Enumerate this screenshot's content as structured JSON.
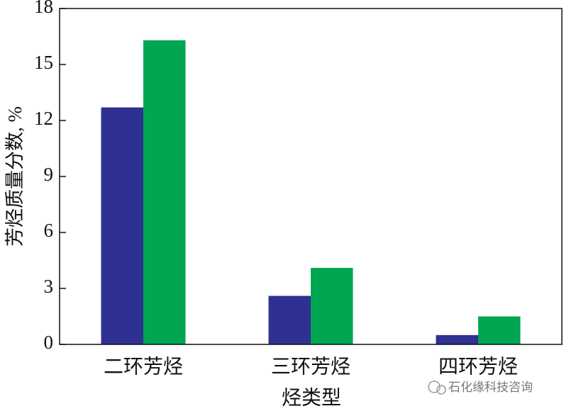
{
  "chart_data": {
    "type": "bar",
    "y_label": "芳烃质量分数, %",
    "x_label": "烃类型",
    "categories": [
      "二环芳烃",
      "三环芳烃",
      "四环芳烃"
    ],
    "series": [
      {
        "color": "#2e3192",
        "values": [
          12.7,
          2.6,
          0.5
        ]
      },
      {
        "color": "#00a651",
        "values": [
          16.3,
          4.1,
          1.5
        ]
      }
    ],
    "ylim": [
      0,
      18
    ],
    "yticks": [
      0,
      3,
      6,
      9,
      12,
      15,
      18
    ],
    "grid": false
  },
  "watermark": "石化缘科技咨询"
}
